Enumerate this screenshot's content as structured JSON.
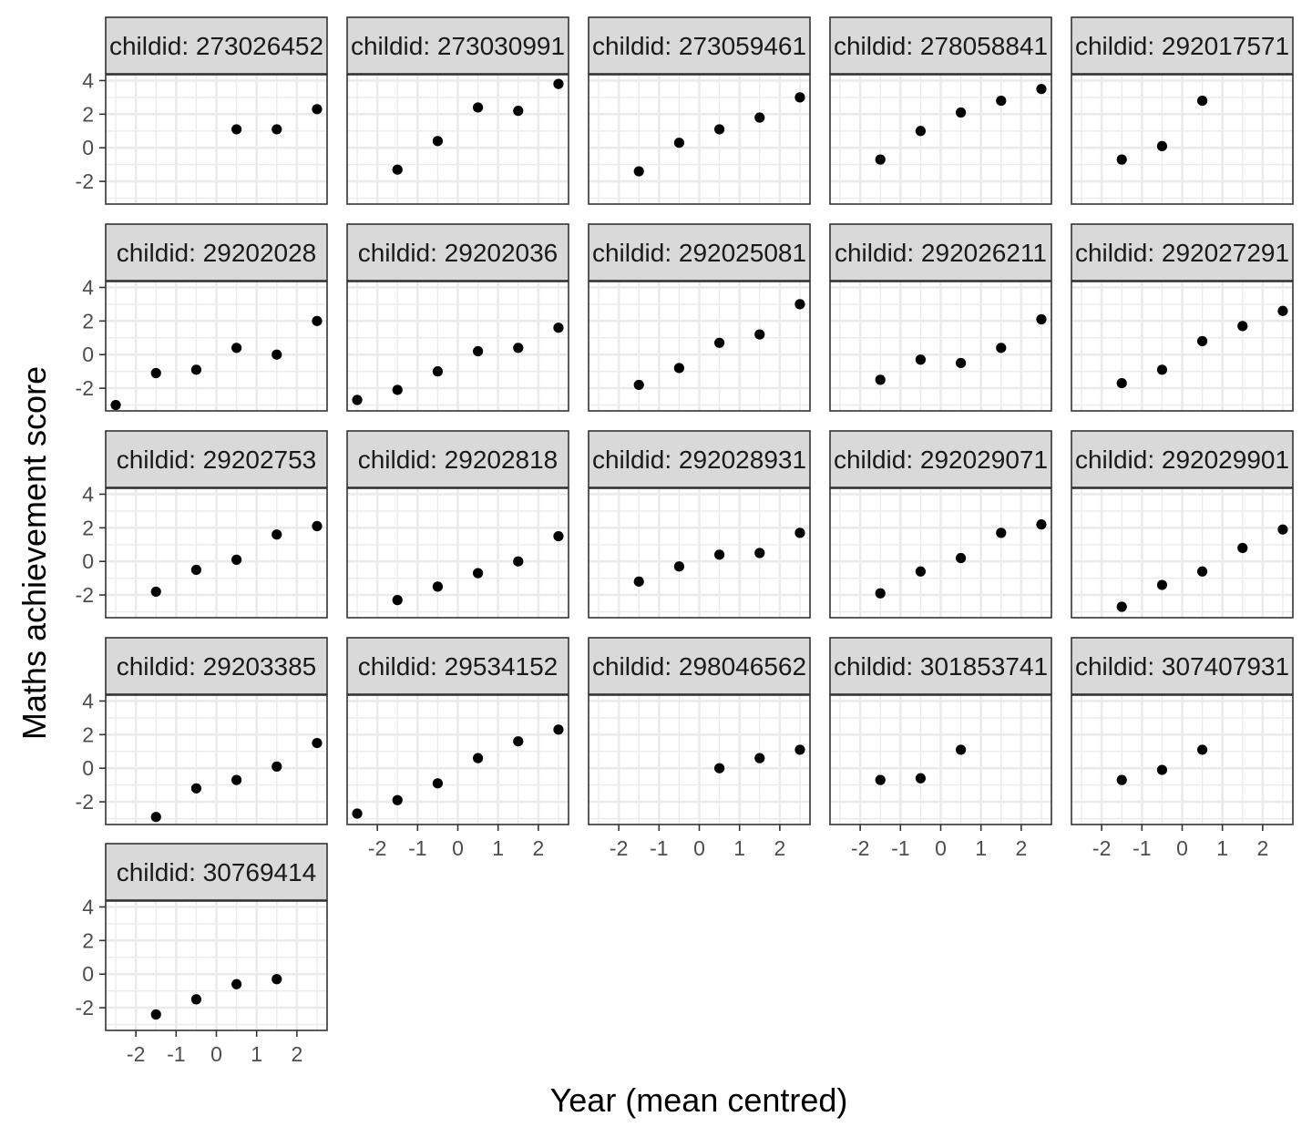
{
  "chart_data": {
    "type": "scatter",
    "layout": "facet_wrap",
    "xlabel": "Year (mean centred)",
    "ylabel": "Maths achievement score",
    "xlim": [
      -2.75,
      2.75
    ],
    "ylim": [
      -3.35,
      4.35
    ],
    "x_ticks": [
      -2,
      -1,
      0,
      1,
      2
    ],
    "y_ticks": [
      -2,
      0,
      2,
      4
    ],
    "x_tick_labels": [
      "-2",
      "-1",
      "0",
      "1",
      "2"
    ],
    "y_tick_labels": [
      "-2",
      "0",
      "2",
      "4"
    ],
    "grid": true,
    "point_color": "#000000",
    "strip_fill": "#d9d9d9",
    "grid_color": "#ebebeb",
    "panels": [
      {
        "label": "childid: 273026452",
        "x": [
          0.5,
          1.5,
          2.5
        ],
        "y": [
          1.1,
          1.1,
          2.3
        ]
      },
      {
        "label": "childid: 273030991",
        "x": [
          -1.5,
          -0.5,
          0.5,
          1.5,
          2.5
        ],
        "y": [
          -1.3,
          0.4,
          2.4,
          2.2,
          3.8
        ]
      },
      {
        "label": "childid: 273059461",
        "x": [
          -1.5,
          -0.5,
          0.5,
          1.5,
          2.5
        ],
        "y": [
          -1.4,
          0.3,
          1.1,
          1.8,
          3.0
        ]
      },
      {
        "label": "childid: 278058841",
        "x": [
          -1.5,
          -0.5,
          0.5,
          1.5,
          2.5
        ],
        "y": [
          -0.7,
          1.0,
          2.1,
          2.8,
          3.5
        ]
      },
      {
        "label": "childid: 292017571",
        "x": [
          -1.5,
          -0.5,
          0.5
        ],
        "y": [
          -0.7,
          0.1,
          2.8
        ]
      },
      {
        "label": "childid: 29202028",
        "x": [
          -2.5,
          -1.5,
          -0.5,
          0.5,
          1.5,
          2.5
        ],
        "y": [
          -3.0,
          -1.1,
          -0.9,
          0.4,
          0.0,
          2.0
        ]
      },
      {
        "label": "childid: 29202036",
        "x": [
          -2.5,
          -1.5,
          -0.5,
          0.5,
          1.5,
          2.5
        ],
        "y": [
          -2.7,
          -2.1,
          -1.0,
          0.2,
          0.4,
          1.6
        ]
      },
      {
        "label": "childid: 292025081",
        "x": [
          -1.5,
          -0.5,
          0.5,
          1.5,
          2.5
        ],
        "y": [
          -1.8,
          -0.8,
          0.7,
          1.2,
          3.0
        ]
      },
      {
        "label": "childid: 292026211",
        "x": [
          -1.5,
          -0.5,
          0.5,
          1.5,
          2.5
        ],
        "y": [
          -1.5,
          -0.3,
          -0.5,
          0.4,
          2.1
        ]
      },
      {
        "label": "childid: 292027291",
        "x": [
          -1.5,
          -0.5,
          0.5,
          1.5,
          2.5
        ],
        "y": [
          -1.7,
          -0.9,
          0.8,
          1.7,
          2.6
        ]
      },
      {
        "label": "childid: 29202753",
        "x": [
          -1.5,
          -0.5,
          0.5,
          1.5,
          2.5
        ],
        "y": [
          -1.8,
          -0.5,
          0.1,
          1.6,
          2.1
        ]
      },
      {
        "label": "childid: 29202818",
        "x": [
          -1.5,
          -0.5,
          0.5,
          1.5,
          2.5
        ],
        "y": [
          -2.3,
          -1.5,
          -0.7,
          0.0,
          1.5
        ]
      },
      {
        "label": "childid: 292028931",
        "x": [
          -1.5,
          -0.5,
          0.5,
          1.5,
          2.5
        ],
        "y": [
          -1.2,
          -0.3,
          0.4,
          0.5,
          1.7
        ]
      },
      {
        "label": "childid: 292029071",
        "x": [
          -1.5,
          -0.5,
          0.5,
          1.5,
          2.5
        ],
        "y": [
          -1.9,
          -0.6,
          0.2,
          1.7,
          2.2
        ]
      },
      {
        "label": "childid: 292029901",
        "x": [
          -1.5,
          -0.5,
          0.5,
          1.5,
          2.5
        ],
        "y": [
          -2.7,
          -1.4,
          -0.6,
          0.8,
          1.9
        ]
      },
      {
        "label": "childid: 29203385",
        "x": [
          -1.5,
          -0.5,
          0.5,
          1.5,
          2.5
        ],
        "y": [
          -2.9,
          -1.2,
          -0.7,
          0.1,
          1.5
        ]
      },
      {
        "label": "childid: 29534152",
        "x": [
          -2.5,
          -1.5,
          -0.5,
          0.5,
          1.5,
          2.5
        ],
        "y": [
          -2.7,
          -1.9,
          -0.9,
          0.6,
          1.6,
          2.3
        ]
      },
      {
        "label": "childid: 298046562",
        "x": [
          0.5,
          1.5,
          2.5
        ],
        "y": [
          0.0,
          0.6,
          1.1
        ]
      },
      {
        "label": "childid: 301853741",
        "x": [
          -1.5,
          -0.5,
          0.5
        ],
        "y": [
          -0.7,
          -0.6,
          1.1
        ]
      },
      {
        "label": "childid: 307407931",
        "x": [
          -1.5,
          -0.5,
          0.5
        ],
        "y": [
          -0.7,
          -0.1,
          1.1
        ]
      },
      {
        "label": "childid: 30769414",
        "x": [
          -1.5,
          -0.5,
          0.5,
          1.5
        ],
        "y": [
          -2.4,
          -1.5,
          -0.6,
          -0.3
        ]
      }
    ]
  }
}
